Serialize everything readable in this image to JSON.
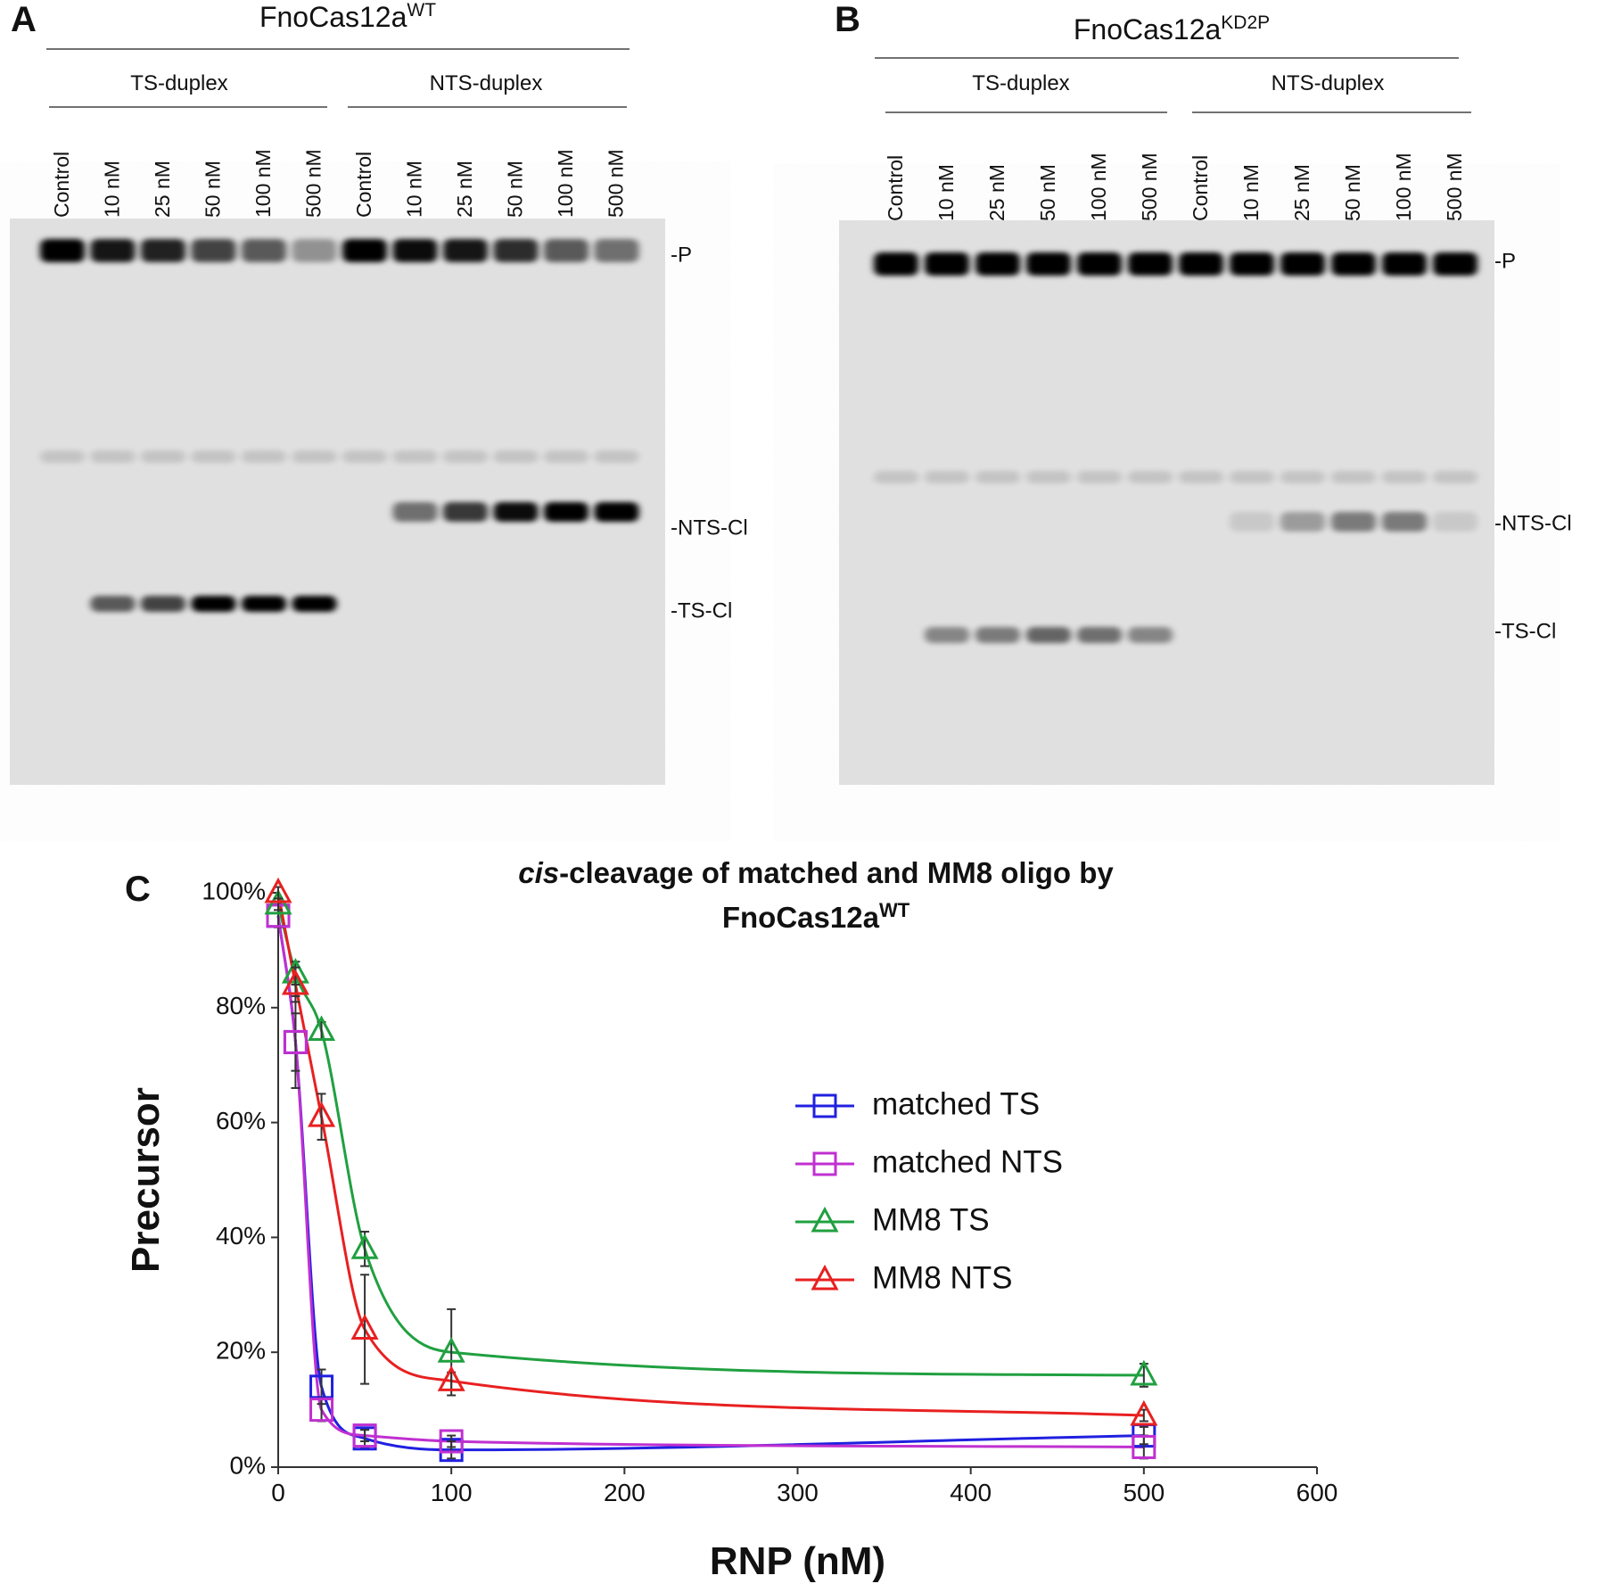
{
  "gels": [
    {
      "panel": "A",
      "title": "FnoCas12a",
      "superscript": "WT",
      "groups": [
        {
          "name": "TS-duplex",
          "lanes": [
            "Control",
            "10 nM",
            "25 nM",
            "50 nM",
            "100 nM",
            "500 nM"
          ]
        },
        {
          "name": "NTS-duplex",
          "lanes": [
            "Control",
            "10 nM",
            "25 nM",
            "50 nM",
            "100 nM",
            "500 nM"
          ]
        }
      ],
      "bands": [
        "-P",
        "-NTS-Cl",
        "-TS-Cl"
      ]
    },
    {
      "panel": "B",
      "title": "FnoCas12a",
      "superscript": "KD2P",
      "groups": [
        {
          "name": "TS-duplex",
          "lanes": [
            "Control",
            "10 nM",
            "25 nM",
            "50 nM",
            "100 nM",
            "500 nM"
          ]
        },
        {
          "name": "NTS-duplex",
          "lanes": [
            "Control",
            "10 nM",
            "25 nM",
            "50 nM",
            "100 nM",
            "500 nM"
          ]
        }
      ],
      "bands": [
        "-P",
        "-NTS-Cl",
        "-TS-Cl"
      ]
    }
  ],
  "chart_data": {
    "type": "line",
    "panel": "C",
    "title": {
      "italic": "cis",
      "line1": "-cleavage of matched and MM8 oligo by",
      "line2": "FnoCas12a",
      "superscript": "WT"
    },
    "x_label": "RNP (nM)",
    "y_label": "Precursor",
    "x": [
      0,
      10,
      25,
      50,
      100,
      500
    ],
    "series": [
      {
        "name": "matched TS",
        "color": "#2020e0",
        "marker": "square",
        "values": [
          96,
          74,
          14,
          5,
          3,
          5.5
        ],
        "errors": [
          2,
          8,
          3,
          1.5,
          1.5,
          1.5
        ]
      },
      {
        "name": "matched NTS",
        "color": "#c030d0",
        "marker": "square",
        "values": [
          96,
          74,
          10,
          5.5,
          4.5,
          3.5
        ],
        "errors": [
          2,
          5,
          2,
          1,
          1,
          2
        ]
      },
      {
        "name": "MM8 TS",
        "color": "#20a040",
        "marker": "triangle",
        "values": [
          98,
          86,
          76,
          38,
          20,
          16
        ],
        "errors": [
          1,
          2,
          1.5,
          3,
          7.5,
          2
        ]
      },
      {
        "name": "MM8 NTS",
        "color": "#e82020",
        "marker": "triangle",
        "values": [
          100,
          84,
          61,
          24,
          15,
          9
        ],
        "errors": [
          1,
          3,
          4,
          9.5,
          1.5,
          1
        ]
      }
    ],
    "xlim": [
      0,
      600
    ],
    "xticks": [
      0,
      100,
      200,
      300,
      400,
      500,
      600
    ],
    "ylim": [
      0,
      100
    ],
    "yticks": [
      {
        "value": 0,
        "label": "0%"
      },
      {
        "value": 20,
        "label": "20%"
      },
      {
        "value": 40,
        "label": "40%"
      },
      {
        "value": 60,
        "label": "60%"
      },
      {
        "value": 80,
        "label": "80%"
      },
      {
        "value": 100,
        "label": "100%"
      }
    ],
    "grid": false,
    "legend": "right"
  }
}
